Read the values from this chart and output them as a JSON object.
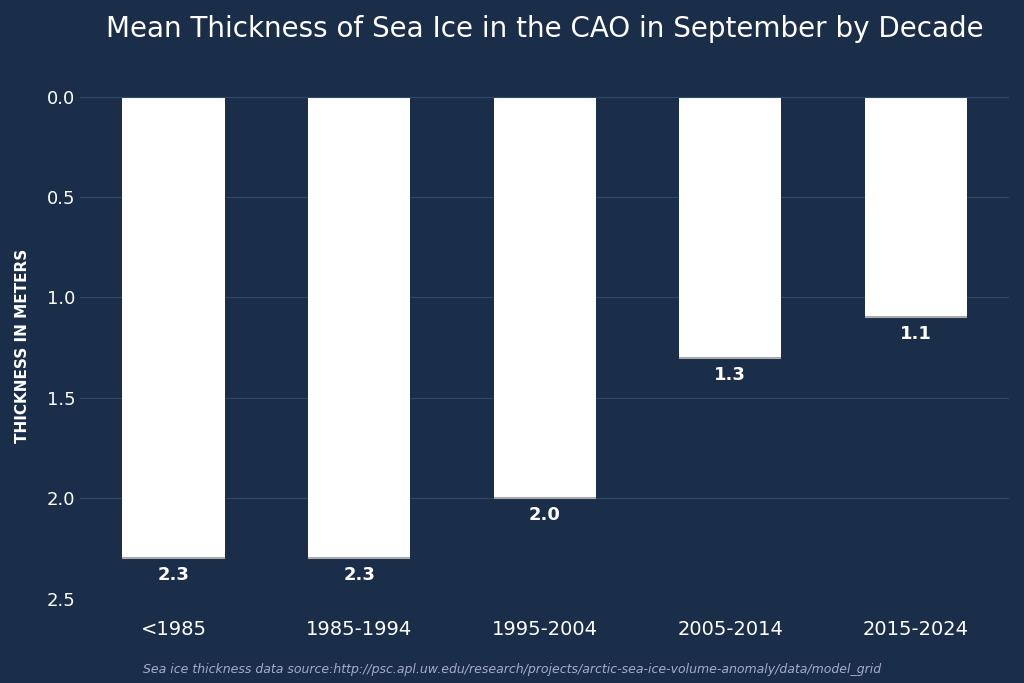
{
  "title": "Mean Thickness of Sea Ice in the CAO in September by Decade",
  "categories": [
    "<1985",
    "1985-1994",
    "1995-2004",
    "2005-2014",
    "2015-2024"
  ],
  "values": [
    2.3,
    2.3,
    2.0,
    1.3,
    1.1
  ],
  "bar_color": "white",
  "background_color": "#1a2e4a",
  "text_color": "white",
  "ylabel": "THICKNESS IN METERS",
  "ylim_min": 0.0,
  "ylim_max": 2.5,
  "yticks": [
    0.0,
    0.5,
    1.0,
    1.5,
    2.0,
    2.5
  ],
  "title_fontsize": 20,
  "label_fontsize": 11,
  "tick_fontsize": 13,
  "value_fontsize": 13,
  "category_fontsize": 14,
  "source_text": "Sea ice thickness data source:http://psc.apl.uw.edu/research/projects/arctic-sea-ice-volume-anomaly/data/model_grid",
  "source_fontsize": 9,
  "grid_color": "#2e4a6a",
  "bar_width": 0.55
}
